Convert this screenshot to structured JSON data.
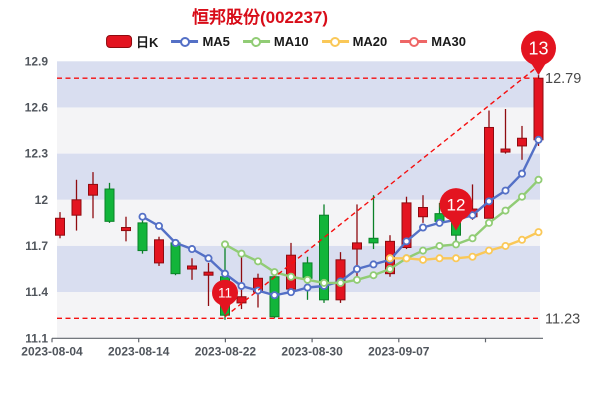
{
  "title": "恒邦股份(002237)",
  "legend": {
    "items": [
      {
        "label": "日K",
        "type": "candlestick",
        "color": "#e31420"
      },
      {
        "label": "MA5",
        "type": "line",
        "color": "#5470c6"
      },
      {
        "label": "MA10",
        "type": "line",
        "color": "#91cc75"
      },
      {
        "label": "MA20",
        "type": "line",
        "color": "#fac858"
      },
      {
        "label": "MA30",
        "type": "line",
        "color": "#ee6666"
      }
    ]
  },
  "colors": {
    "title": "#d80c18",
    "up_fill": "#e31420",
    "up_border": "#8f0b10",
    "down_fill": "#12b53a",
    "down_border": "#0a8128",
    "band_dark": "#d9def0",
    "band_light": "#f4f4f6",
    "dashed_line": "#f50f0f",
    "marker_pin": "#e31420",
    "marker_text": "#ffffff",
    "axis_line": "#60646c",
    "axis_text": "#50555c",
    "annotation_text": "#4a4a4a"
  },
  "chart_data": {
    "type": "candlestick",
    "title": "恒邦股份(002237)",
    "y_axis": {
      "min": 11.1,
      "max": 12.9,
      "ticks": [
        "12.9",
        "12.6",
        "12.3",
        "12",
        "11.7",
        "11.4",
        "11.1"
      ],
      "tick_values": [
        12.9,
        12.6,
        12.3,
        12.0,
        11.7,
        11.4,
        11.1
      ]
    },
    "x_axis": {
      "ticks": [
        "2023-08-04",
        "2023-08-14",
        "2023-08-22",
        "2023-08-30",
        "2023-09-07"
      ]
    },
    "candles": [
      {
        "o": 11.77,
        "c": 11.88,
        "l": 11.75,
        "h": 11.92
      },
      {
        "o": 11.9,
        "c": 12.0,
        "l": 11.8,
        "h": 12.13
      },
      {
        "o": 12.03,
        "c": 12.1,
        "l": 11.88,
        "h": 12.18
      },
      {
        "o": 12.07,
        "c": 11.86,
        "l": 11.85,
        "h": 12.11
      },
      {
        "o": 11.8,
        "c": 11.82,
        "l": 11.73,
        "h": 11.89
      },
      {
        "o": 11.85,
        "c": 11.67,
        "l": 11.65,
        "h": 11.88
      },
      {
        "o": 11.59,
        "c": 11.74,
        "l": 11.57,
        "h": 11.76
      },
      {
        "o": 11.72,
        "c": 11.52,
        "l": 11.51,
        "h": 11.74
      },
      {
        "o": 11.55,
        "c": 11.57,
        "l": 11.48,
        "h": 11.62
      },
      {
        "o": 11.51,
        "c": 11.53,
        "l": 11.31,
        "h": 11.59
      },
      {
        "o": 11.5,
        "c": 11.25,
        "l": 11.22,
        "h": 11.7
      },
      {
        "o": 11.33,
        "c": 11.37,
        "l": 11.29,
        "h": 11.64
      },
      {
        "o": 11.4,
        "c": 11.49,
        "l": 11.3,
        "h": 11.52
      },
      {
        "o": 11.5,
        "c": 11.24,
        "l": 11.23,
        "h": 11.51
      },
      {
        "o": 11.42,
        "c": 11.64,
        "l": 11.4,
        "h": 11.72
      },
      {
        "o": 11.59,
        "c": 11.49,
        "l": 11.35,
        "h": 11.63
      },
      {
        "o": 11.9,
        "c": 11.35,
        "l": 11.33,
        "h": 11.97
      },
      {
        "o": 11.35,
        "c": 11.61,
        "l": 11.33,
        "h": 11.66
      },
      {
        "o": 11.68,
        "c": 11.72,
        "l": 11.5,
        "h": 11.97
      },
      {
        "o": 11.75,
        "c": 11.72,
        "l": 11.68,
        "h": 12.03
      },
      {
        "o": 11.52,
        "c": 11.73,
        "l": 11.5,
        "h": 11.77
      },
      {
        "o": 11.69,
        "c": 11.98,
        "l": 11.68,
        "h": 12.02
      },
      {
        "o": 11.89,
        "c": 11.95,
        "l": 11.85,
        "h": 12.03
      },
      {
        "o": 11.91,
        "c": 11.86,
        "l": 11.83,
        "h": 11.98
      },
      {
        "o": 11.85,
        "c": 11.77,
        "l": 11.72,
        "h": 11.86
      },
      {
        "o": 11.89,
        "c": 11.94,
        "l": 11.87,
        "h": 12.1
      },
      {
        "o": 11.88,
        "c": 12.47,
        "l": 11.88,
        "h": 12.58
      },
      {
        "o": 12.31,
        "c": 12.33,
        "l": 12.3,
        "h": 12.59
      },
      {
        "o": 12.35,
        "c": 12.4,
        "l": 12.26,
        "h": 12.48
      },
      {
        "o": 12.39,
        "c": 12.79,
        "l": 12.35,
        "h": 12.81
      }
    ],
    "series": [
      {
        "name": "MA5",
        "color": "#5470c6",
        "start_index": 5,
        "values": [
          11.89,
          11.83,
          11.72,
          11.68,
          11.62,
          11.52,
          11.44,
          11.41,
          11.38,
          11.4,
          11.43,
          11.44,
          11.47,
          11.55,
          11.58,
          11.61,
          11.73,
          11.82,
          11.85,
          11.87,
          11.9,
          11.99,
          12.06,
          12.17,
          12.39
        ]
      },
      {
        "name": "MA10",
        "color": "#91cc75",
        "start_index": 10,
        "values": [
          11.71,
          11.65,
          11.6,
          11.53,
          11.5,
          11.48,
          11.46,
          11.46,
          11.48,
          11.51,
          11.55,
          11.62,
          11.67,
          11.7,
          11.71,
          11.75,
          11.85,
          11.93,
          12.02,
          12.13
        ]
      },
      {
        "name": "MA20",
        "color": "#fac858",
        "start_index": 20,
        "values": [
          11.62,
          11.62,
          11.61,
          11.62,
          11.62,
          11.63,
          11.67,
          11.7,
          11.74,
          11.79
        ]
      }
    ],
    "markers": [
      {
        "label": "11",
        "index": 10,
        "value": 11.25
      },
      {
        "label": "12",
        "index": 24,
        "value": 11.8
      },
      {
        "label": "13",
        "index": 29,
        "value": 12.81
      }
    ],
    "reference_lines": [
      {
        "kind": "horizontal",
        "value": 12.79,
        "label": "12.79"
      },
      {
        "kind": "horizontal",
        "value": 11.23,
        "label": "11.23"
      },
      {
        "kind": "trend",
        "from": {
          "index": 10,
          "value": 11.24
        },
        "to": {
          "index": 29,
          "value": 12.87
        }
      }
    ],
    "legend_entries": [
      "日K",
      "MA5",
      "MA10",
      "MA20",
      "MA30"
    ]
  }
}
